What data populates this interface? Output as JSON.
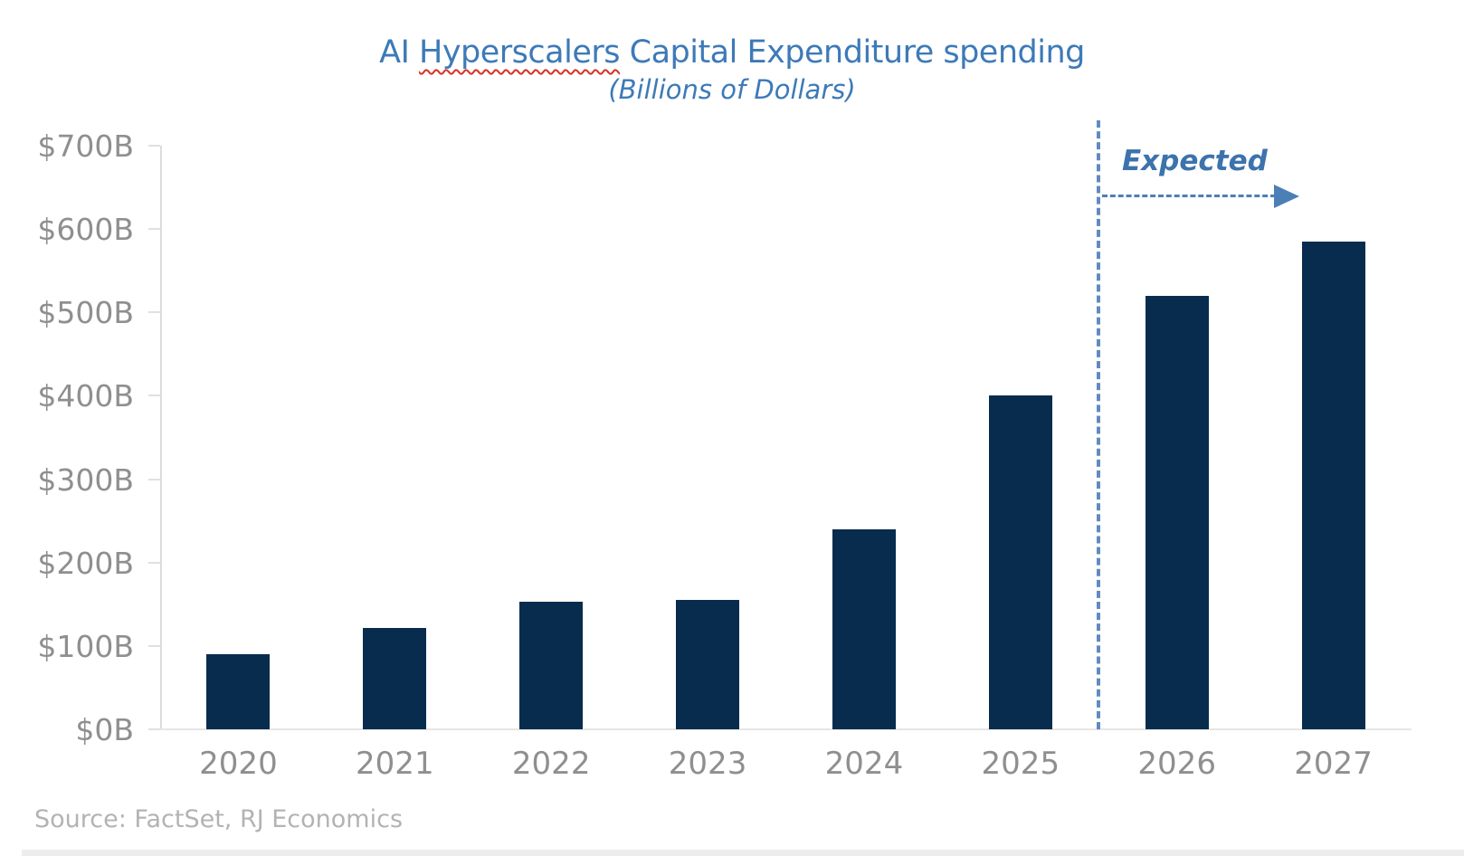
{
  "chart_data": {
    "type": "bar",
    "title": "AI Hyperscalers Capital Expenditure spending",
    "title_parts": {
      "prefix": "AI ",
      "misspelled": "Hyperscalers",
      "suffix": " Capital Expenditure spending"
    },
    "subtitle": "(Billions of Dollars)",
    "categories": [
      "2020",
      "2021",
      "2022",
      "2023",
      "2024",
      "2025",
      "2026",
      "2027"
    ],
    "values": [
      90,
      122,
      153,
      155,
      240,
      400,
      520,
      585
    ],
    "xlabel": "",
    "ylabel": "",
    "ylim": [
      0,
      700
    ],
    "ytick_step": 100,
    "ytick_labels": [
      "$0B",
      "$100B",
      "$200B",
      "$300B",
      "$400B",
      "$500B",
      "$600B",
      "$700B"
    ],
    "grid": false,
    "legend": "none",
    "annotations": {
      "expected_label": "Expected",
      "separator_after_category": "2025",
      "separator_style": "dashed-vertical-line",
      "arrow_direction": "right"
    },
    "source": "Source: FactSet, RJ Economics"
  },
  "colors": {
    "bar": "#072c4d",
    "title_blue": "#3d7ab8",
    "annotation_blue": "#4c7fb6",
    "axis_gray": "#dcdcdc",
    "label_gray": "#8f8f8f",
    "source_gray": "#b3b3b3",
    "squiggle_red": "#d93025"
  }
}
